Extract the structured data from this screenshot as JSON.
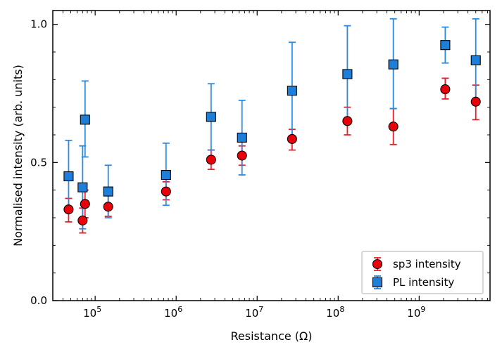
{
  "chart_data": {
    "type": "scatter",
    "xscale": "log",
    "xlabel": "Resistance (Ω)",
    "ylabel": "Normalised intensity (arb. units)",
    "xlim": [
      30000,
      7500000000
    ],
    "ylim": [
      0.0,
      1.05
    ],
    "x_ticks": [
      {
        "value": 100000,
        "mantissa": "10",
        "exponent": "5"
      },
      {
        "value": 1000000,
        "mantissa": "10",
        "exponent": "6"
      },
      {
        "value": 10000000,
        "mantissa": "10",
        "exponent": "7"
      },
      {
        "value": 100000000,
        "mantissa": "10",
        "exponent": "8"
      },
      {
        "value": 1000000000,
        "mantissa": "10",
        "exponent": "9"
      }
    ],
    "y_ticks": [
      {
        "value": 0.0,
        "label": "0.0"
      },
      {
        "value": 0.5,
        "label": "0.5"
      },
      {
        "value": 1.0,
        "label": "1.0"
      }
    ],
    "legend": {
      "position": "bottom-right"
    },
    "series": [
      {
        "name": "sp3 intensity",
        "marker": "circle",
        "color": "#e8000b",
        "error_color": "#e8202a",
        "points": [
          {
            "x": 47000,
            "y": 0.33,
            "lo": 0.285,
            "hi": 0.37
          },
          {
            "x": 70000,
            "y": 0.29,
            "lo": 0.245,
            "hi": 0.335
          },
          {
            "x": 75000,
            "y": 0.35,
            "lo": 0.3,
            "hi": 0.4
          },
          {
            "x": 145000,
            "y": 0.34,
            "lo": 0.305,
            "hi": 0.38
          },
          {
            "x": 750000,
            "y": 0.395,
            "lo": 0.365,
            "hi": 0.43
          },
          {
            "x": 2700000,
            "y": 0.51,
            "lo": 0.475,
            "hi": 0.545
          },
          {
            "x": 6500000,
            "y": 0.525,
            "lo": 0.49,
            "hi": 0.56
          },
          {
            "x": 27000000,
            "y": 0.585,
            "lo": 0.545,
            "hi": 0.62
          },
          {
            "x": 130000000,
            "y": 0.65,
            "lo": 0.6,
            "hi": 0.7
          },
          {
            "x": 480000000,
            "y": 0.63,
            "lo": 0.565,
            "hi": 0.695
          },
          {
            "x": 2100000000,
            "y": 0.765,
            "lo": 0.73,
            "hi": 0.805
          },
          {
            "x": 5000000000,
            "y": 0.72,
            "lo": 0.655,
            "hi": 0.78
          }
        ]
      },
      {
        "name": "PL intensity",
        "marker": "square",
        "color": "#1f7fd8",
        "error_color": "#2a8ae0",
        "points": [
          {
            "x": 47000,
            "y": 0.45,
            "lo": 0.33,
            "hi": 0.58
          },
          {
            "x": 70000,
            "y": 0.41,
            "lo": 0.26,
            "hi": 0.56
          },
          {
            "x": 75000,
            "y": 0.655,
            "lo": 0.52,
            "hi": 0.795
          },
          {
            "x": 145000,
            "y": 0.395,
            "lo": 0.3,
            "hi": 0.49
          },
          {
            "x": 750000,
            "y": 0.455,
            "lo": 0.345,
            "hi": 0.57
          },
          {
            "x": 2700000,
            "y": 0.665,
            "lo": 0.545,
            "hi": 0.785
          },
          {
            "x": 6500000,
            "y": 0.59,
            "lo": 0.455,
            "hi": 0.725
          },
          {
            "x": 27000000,
            "y": 0.76,
            "lo": 0.585,
            "hi": 0.935
          },
          {
            "x": 130000000,
            "y": 0.82,
            "lo": 0.645,
            "hi": 0.995
          },
          {
            "x": 480000000,
            "y": 0.855,
            "lo": 0.695,
            "hi": 1.02
          },
          {
            "x": 2100000000,
            "y": 0.925,
            "lo": 0.86,
            "hi": 0.99
          },
          {
            "x": 5000000000,
            "y": 0.87,
            "lo": 0.72,
            "hi": 1.02
          }
        ]
      }
    ]
  }
}
